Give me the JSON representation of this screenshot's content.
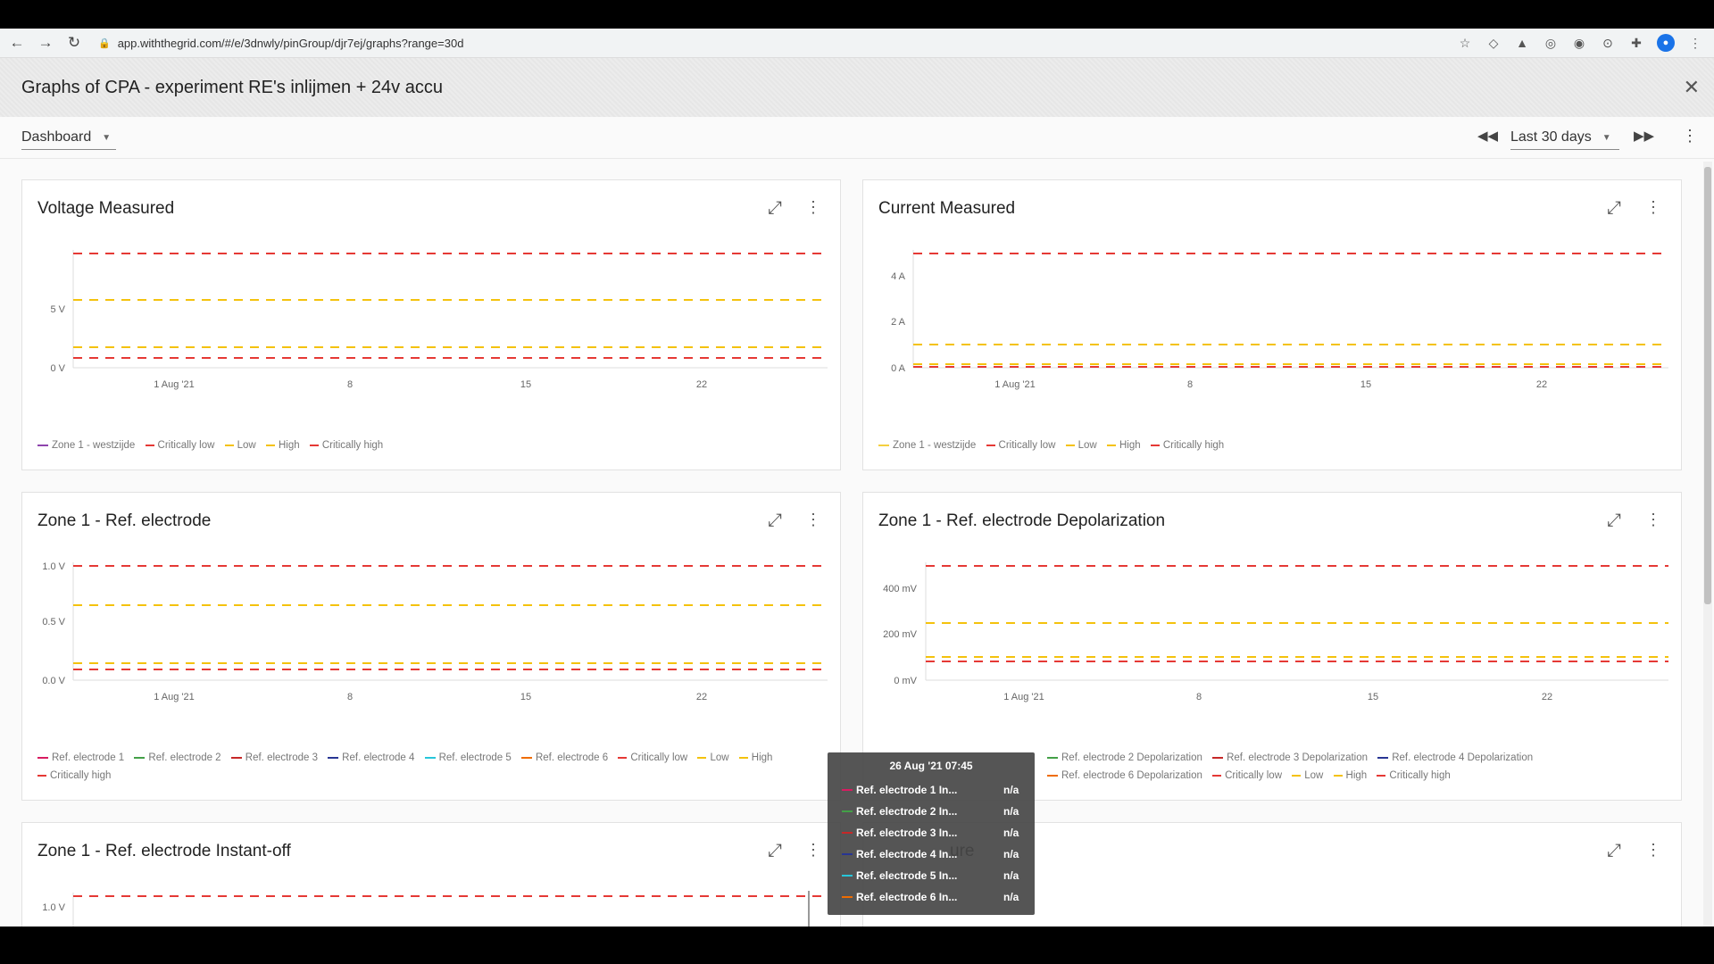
{
  "browser": {
    "url": "app.withthegrid.com/#/e/3dnwly/pinGroup/djr7ej/graphs?range=30d"
  },
  "app": {
    "title": "Graphs of CPA - experiment RE's inlijmen + 24v accu",
    "dashboard_select": "Dashboard",
    "range_select": "Last 30 days"
  },
  "colors": {
    "critical": "#e53935",
    "threshold": "#f4c20d",
    "zone1_voltage": "#8e44ad",
    "zone1_current": "#f4d03f",
    "re1": "#d81b60",
    "re2": "#43a047",
    "re3": "#c62828",
    "re4": "#283593",
    "re5": "#26c6da",
    "re6": "#ef6c00"
  },
  "cards": [
    {
      "title": "Voltage Measured",
      "y_ticks": [
        "5 V",
        "0 V"
      ],
      "x_ticks": [
        "1 Aug '21",
        "8",
        "15",
        "22"
      ],
      "legend": [
        "Zone 1 - westzijde",
        "Critically low",
        "Low",
        "High",
        "Critically high"
      ]
    },
    {
      "title": "Current Measured",
      "y_ticks": [
        "4 A",
        "2 A",
        "0 A"
      ],
      "x_ticks": [
        "1 Aug '21",
        "8",
        "15",
        "22"
      ],
      "legend": [
        "Zone 1 - westzijde",
        "Critically low",
        "Low",
        "High",
        "Critically high"
      ]
    },
    {
      "title": "Zone 1 - Ref. electrode",
      "y_ticks": [
        "1.0 V",
        "0.5 V",
        "0.0 V"
      ],
      "x_ticks": [
        "1 Aug '21",
        "8",
        "15",
        "22"
      ],
      "legend": [
        "Ref. electrode 1",
        "Ref. electrode 2",
        "Ref. electrode 3",
        "Ref. electrode 4",
        "Ref. electrode 5",
        "Ref. electrode 6",
        "Critically low",
        "Low",
        "High",
        "Critically high"
      ]
    },
    {
      "title": "Zone 1 - Ref. electrode Depolarization",
      "y_ticks": [
        "400 mV",
        "200 mV",
        "0 mV"
      ],
      "x_ticks": [
        "1 Aug '21",
        "8",
        "15",
        "22"
      ],
      "legend": [
        "Ref. electrode 2 Depolarization",
        "Ref. electrode 3 Depolarization",
        "Ref. electrode 4 Depolarization",
        "Ref. electrode 6 Depolarization",
        "Critically low",
        "Low",
        "High",
        "Critically high"
      ]
    },
    {
      "title": "Zone 1 - Ref. electrode Instant-off",
      "y_ticks": [
        "1.0 V"
      ]
    },
    {
      "title": "ure"
    }
  ],
  "tooltip": {
    "title": "26 Aug '21 07:45",
    "rows": [
      {
        "name": "Ref. electrode 1 In...",
        "value": "n/a"
      },
      {
        "name": "Ref. electrode 2 In...",
        "value": "n/a"
      },
      {
        "name": "Ref. electrode 3 In...",
        "value": "n/a"
      },
      {
        "name": "Ref. electrode 4 In...",
        "value": "n/a"
      },
      {
        "name": "Ref. electrode 5 In...",
        "value": "n/a"
      },
      {
        "name": "Ref. electrode 6 In...",
        "value": "n/a"
      }
    ]
  }
}
